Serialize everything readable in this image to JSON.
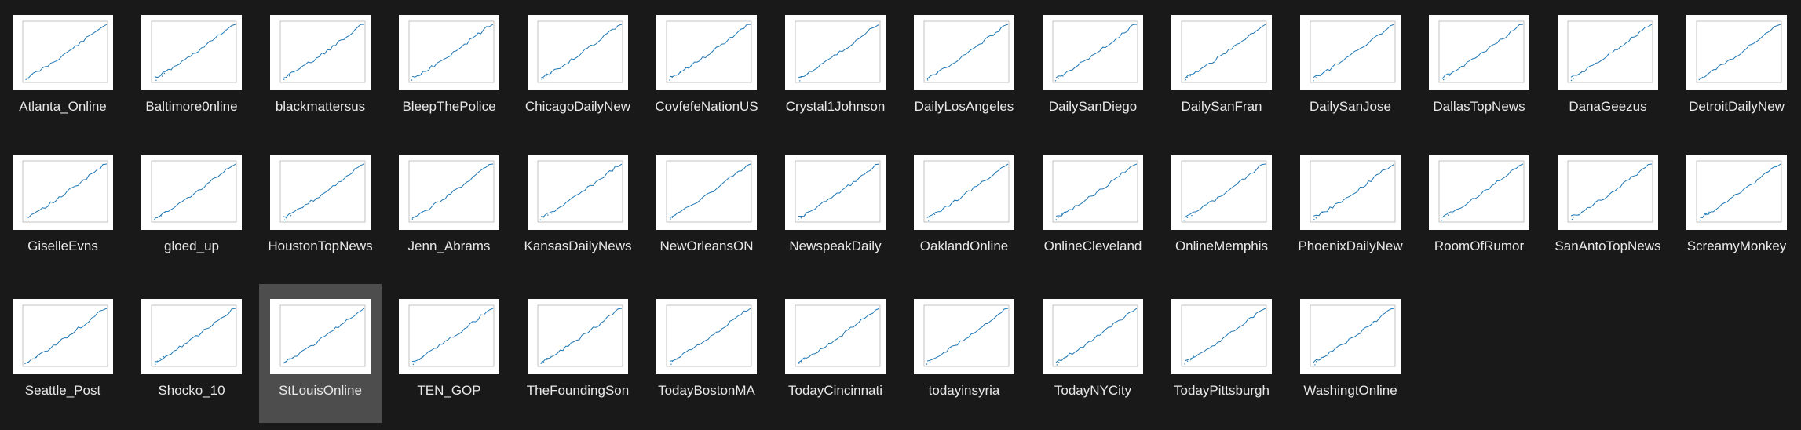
{
  "explorer": {
    "view": "large-icons",
    "selected_index": 30,
    "colors": {
      "background": "#191919",
      "selection": "#4d4d4d",
      "text": "#e8e8e8",
      "plot_line": "#1f77b4"
    },
    "files": [
      {
        "name": "Atlanta_Online",
        "thumbnail": "line-plot"
      },
      {
        "name": "Baltimore0nline",
        "thumbnail": "line-plot"
      },
      {
        "name": "blackmattersus",
        "thumbnail": "line-plot"
      },
      {
        "name": "BleepThePolice",
        "thumbnail": "line-plot"
      },
      {
        "name": "ChicagoDailyNew",
        "thumbnail": "line-plot"
      },
      {
        "name": "CovfefeNationUS",
        "thumbnail": "line-plot"
      },
      {
        "name": "Crystal1Johnson",
        "thumbnail": "line-plot"
      },
      {
        "name": "DailyLosAngeles",
        "thumbnail": "line-plot"
      },
      {
        "name": "DailySanDiego",
        "thumbnail": "line-plot"
      },
      {
        "name": "DailySanFran",
        "thumbnail": "line-plot"
      },
      {
        "name": "DailySanJose",
        "thumbnail": "line-plot"
      },
      {
        "name": "DallasTopNews",
        "thumbnail": "line-plot"
      },
      {
        "name": "DanaGeezus",
        "thumbnail": "line-plot"
      },
      {
        "name": "DetroitDailyNew",
        "thumbnail": "line-plot"
      },
      {
        "name": "GiselleEvns",
        "thumbnail": "line-plot"
      },
      {
        "name": "gloed_up",
        "thumbnail": "line-plot"
      },
      {
        "name": "HoustonTopNews",
        "thumbnail": "line-plot"
      },
      {
        "name": "Jenn_Abrams",
        "thumbnail": "line-plot"
      },
      {
        "name": "KansasDailyNews",
        "thumbnail": "line-plot"
      },
      {
        "name": "NewOrleansON",
        "thumbnail": "line-plot"
      },
      {
        "name": "NewspeakDaily",
        "thumbnail": "line-plot"
      },
      {
        "name": "OaklandOnline",
        "thumbnail": "line-plot"
      },
      {
        "name": "OnlineCleveland",
        "thumbnail": "line-plot"
      },
      {
        "name": "OnlineMemphis",
        "thumbnail": "line-plot"
      },
      {
        "name": "PhoenixDailyNew",
        "thumbnail": "line-plot"
      },
      {
        "name": "RoomOfRumor",
        "thumbnail": "line-plot"
      },
      {
        "name": "SanAntoTopNews",
        "thumbnail": "line-plot"
      },
      {
        "name": "ScreamyMonkey",
        "thumbnail": "line-plot"
      },
      {
        "name": "Seattle_Post",
        "thumbnail": "line-plot"
      },
      {
        "name": "Shocko_10",
        "thumbnail": "line-plot"
      },
      {
        "name": "StLouisOnline",
        "thumbnail": "line-plot"
      },
      {
        "name": "TEN_GOP",
        "thumbnail": "line-plot"
      },
      {
        "name": "TheFoundingSon",
        "thumbnail": "line-plot"
      },
      {
        "name": "TodayBostonMA",
        "thumbnail": "line-plot"
      },
      {
        "name": "TodayCincinnati",
        "thumbnail": "line-plot"
      },
      {
        "name": "todayinsyria",
        "thumbnail": "line-plot"
      },
      {
        "name": "TodayNYCity",
        "thumbnail": "line-plot"
      },
      {
        "name": "TodayPittsburgh",
        "thumbnail": "line-plot"
      },
      {
        "name": "WashingtOnline",
        "thumbnail": "line-plot"
      }
    ]
  }
}
